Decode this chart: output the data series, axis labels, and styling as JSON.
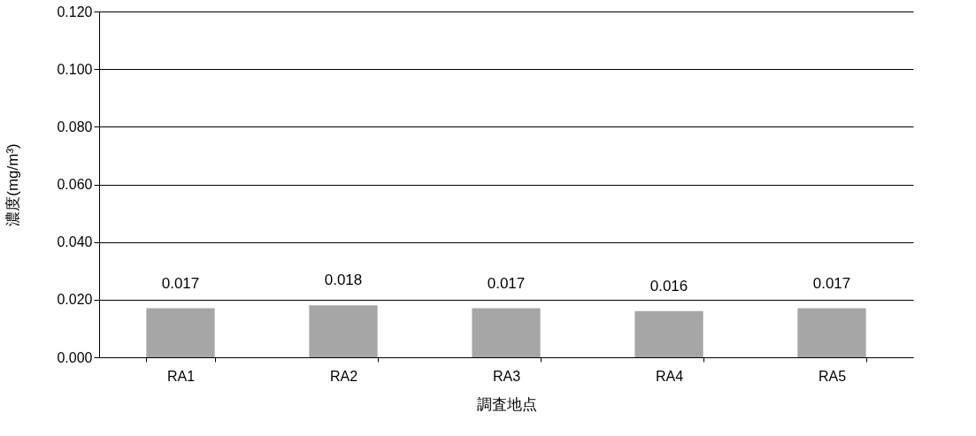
{
  "chart_data": {
    "type": "bar",
    "xlabel": "調査地点",
    "ylabel": "濃度(mg/m³)",
    "categories": [
      "RA1",
      "RA2",
      "RA3",
      "RA4",
      "RA5"
    ],
    "values": [
      0.017,
      0.018,
      0.017,
      0.016,
      0.017
    ],
    "color": "#a6a6a6",
    "ylim": [
      0,
      0.12
    ],
    "yticks": [
      {
        "value": 0,
        "label": "0.000"
      },
      {
        "value": 0.02,
        "label": "0.020"
      },
      {
        "value": 0.04,
        "label": "0.040"
      },
      {
        "value": 0.06,
        "label": "0.060"
      },
      {
        "value": 0.08,
        "label": "0.080"
      },
      {
        "value": 0.1,
        "label": "0.100"
      },
      {
        "value": 0.12,
        "label": "0.120"
      }
    ],
    "grid": "y",
    "data_labels": true
  }
}
